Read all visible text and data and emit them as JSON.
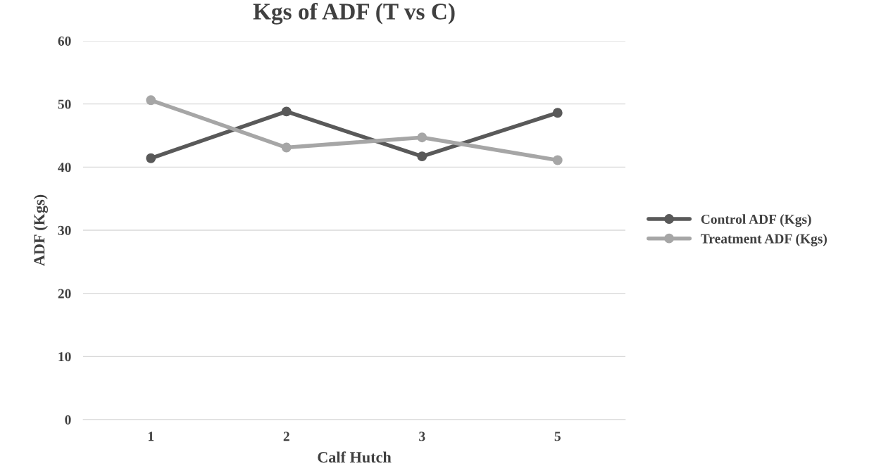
{
  "chart_data": {
    "type": "line",
    "title": "Kgs of ADF (T vs C)",
    "xlabel": "Calf Hutch",
    "ylabel": "ADF (Kgs)",
    "categories": [
      "1",
      "2",
      "3",
      "5"
    ],
    "series": [
      {
        "name": "Control ADF (Kgs)",
        "color": "#595959",
        "values": [
          41.4,
          48.8,
          41.7,
          48.6
        ]
      },
      {
        "name": "Treatment ADF (Kgs)",
        "color": "#a6a6a6",
        "values": [
          50.6,
          43.1,
          44.7,
          41.1
        ]
      }
    ],
    "ylim": [
      0,
      60
    ],
    "yticks": [
      0,
      10,
      20,
      30,
      40,
      50,
      60
    ],
    "grid": "y",
    "legend": "right",
    "marker": "circle",
    "line_style": "solid"
  }
}
